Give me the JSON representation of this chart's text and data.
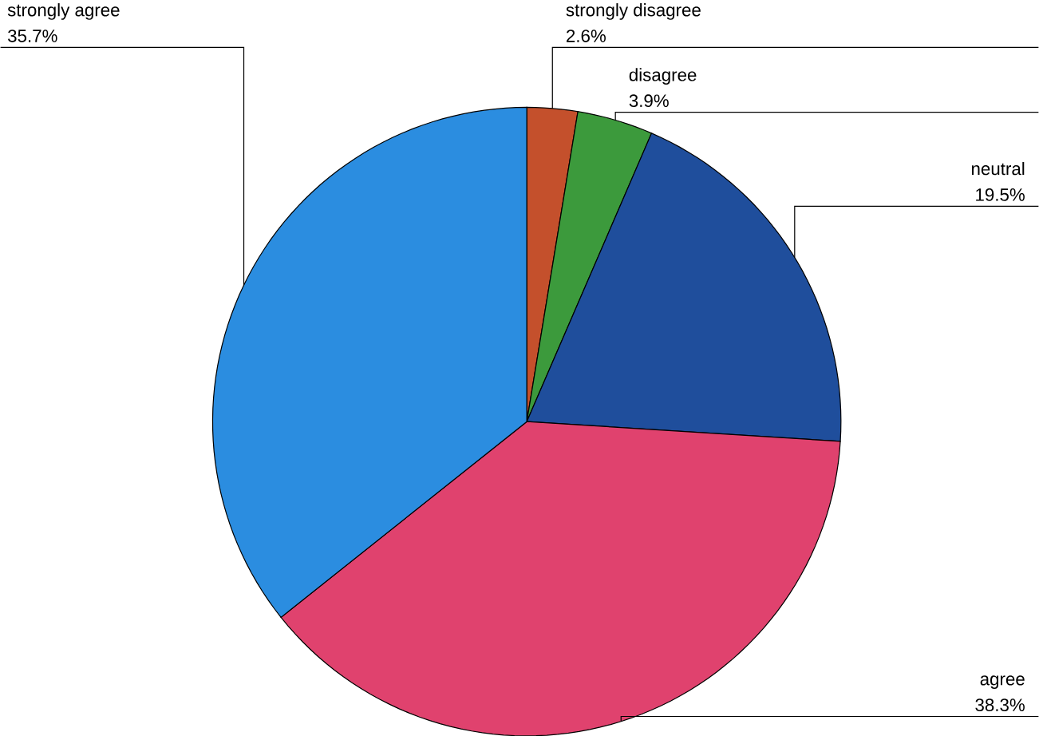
{
  "chart_data": {
    "type": "pie",
    "categories": [
      "strongly disagree",
      "disagree",
      "neutral",
      "agree",
      "strongly agree"
    ],
    "values": [
      2.6,
      3.9,
      19.5,
      38.3,
      35.7
    ],
    "value_labels": [
      "2.6%",
      "3.9%",
      "19.5%",
      "38.3%",
      "35.7%"
    ],
    "colors": [
      "#c4502c",
      "#3c9a3c",
      "#1f4e9c",
      "#e0426e",
      "#2b8de0"
    ]
  }
}
